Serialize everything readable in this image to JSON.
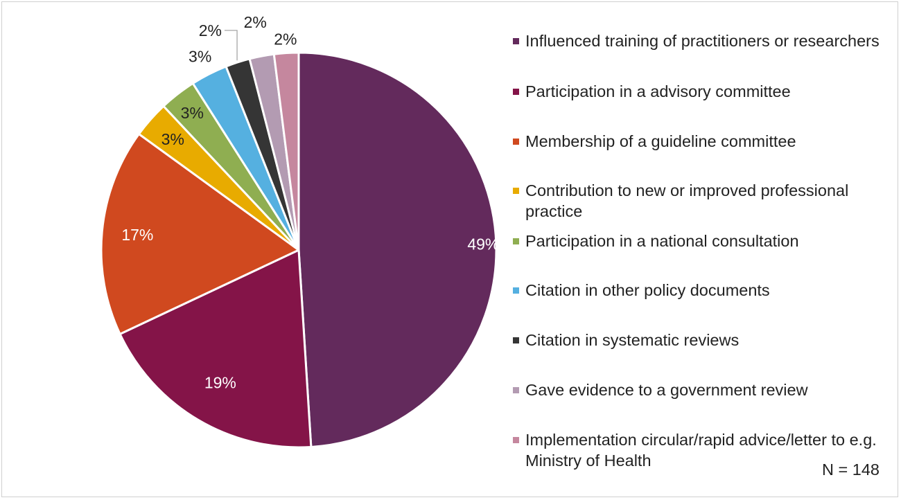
{
  "chart_data": {
    "type": "pie",
    "title": "",
    "slices": [
      {
        "label": "Influenced training of practitioners or researchers",
        "value": 49,
        "value_label": "49%",
        "color": "#632a5c"
      },
      {
        "label": "Participation in a advisory committee",
        "value": 19,
        "value_label": "19%",
        "color": "#841448"
      },
      {
        "label": "Membership of a guideline committee",
        "value": 17,
        "value_label": "17%",
        "color": "#d0491f"
      },
      {
        "label": "Contribution to new or improved professional practice",
        "value": 3,
        "value_label": "3%",
        "color": "#e8ab00"
      },
      {
        "label": "Participation in a national consultation",
        "value": 3,
        "value_label": "3%",
        "color": "#8fae51"
      },
      {
        "label": "Citation in other policy documents",
        "value": 3,
        "value_label": "3%",
        "color": "#55b0e0"
      },
      {
        "label": "Citation in systematic reviews",
        "value": 2,
        "value_label": "2%",
        "color": "#353535"
      },
      {
        "label": "Gave evidence to a government review",
        "value": 2,
        "value_label": "2%",
        "color": "#b39bb2"
      },
      {
        "label": "Implementation circular/rapid advice/letter to e.g. Ministry of Health",
        "value": 2,
        "value_label": "2%",
        "color": "#c5879e"
      }
    ],
    "legend_position": "right",
    "note": "N = 148"
  }
}
